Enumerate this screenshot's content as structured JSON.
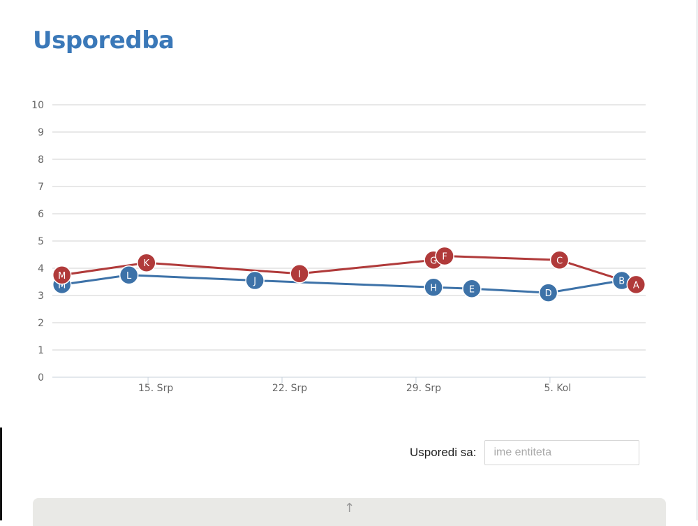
{
  "page": {
    "title": "Usporedba"
  },
  "compare": {
    "label": "Usporedi sa:",
    "placeholder": "ime entiteta"
  },
  "collapse": {
    "icon": "arrow-up-icon",
    "glyph": "↑"
  },
  "chart_data": {
    "type": "line",
    "title": "",
    "xlabel": "",
    "ylabel": "",
    "ylim": [
      0,
      10
    ],
    "yticks": [
      0,
      1,
      2,
      3,
      4,
      5,
      6,
      7,
      8,
      9,
      10
    ],
    "xlim": [
      "2014-07-10",
      "2014-08-10"
    ],
    "xticks": [
      {
        "date": "2014-07-15",
        "label": "15. Srp"
      },
      {
        "date": "2014-07-22",
        "label": "22. Srp"
      },
      {
        "date": "2014-07-29",
        "label": "29. Srp"
      },
      {
        "date": "2014-08-05",
        "label": "5. Kol"
      }
    ],
    "grid": true,
    "legend": "none",
    "series": [
      {
        "color": "#3d72a8",
        "points": [
          {
            "x": "2014-07-10 12:00",
            "y": 3.4,
            "label": "M"
          },
          {
            "x": "2014-07-14 00:00",
            "y": 3.75,
            "label": "L"
          },
          {
            "x": "2014-07-20 14:00",
            "y": 3.55,
            "label": "J"
          },
          {
            "x": "2014-07-29 22:00",
            "y": 3.3,
            "label": "H"
          },
          {
            "x": "2014-07-31 22:00",
            "y": 3.25,
            "label": "E"
          },
          {
            "x": "2014-08-04 22:00",
            "y": 3.1,
            "label": "D"
          },
          {
            "x": "2014-08-08 18:00",
            "y": 3.55,
            "label": "B"
          }
        ]
      },
      {
        "color": "#b03a3a",
        "points": [
          {
            "x": "2014-07-10 12:00",
            "y": 3.75,
            "label": "M"
          },
          {
            "x": "2014-07-14 22:00",
            "y": 4.2,
            "label": "K"
          },
          {
            "x": "2014-07-22 22:00",
            "y": 3.8,
            "label": "I"
          },
          {
            "x": "2014-07-29 22:00",
            "y": 4.3,
            "label": "G"
          },
          {
            "x": "2014-07-30 12:00",
            "y": 4.45,
            "label": "F"
          },
          {
            "x": "2014-08-05 12:00",
            "y": 4.3,
            "label": "C"
          },
          {
            "x": "2014-08-09 12:00",
            "y": 3.4,
            "label": "A"
          }
        ]
      }
    ]
  }
}
